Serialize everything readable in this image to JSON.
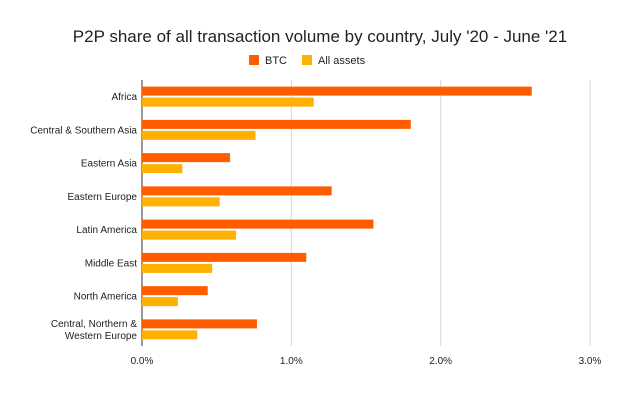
{
  "chart_data": {
    "type": "bar",
    "orientation": "horizontal",
    "title": "P2P share of all transaction volume by country, July '20 - June '21",
    "xlabel": "",
    "ylabel": "",
    "xlim": [
      0,
      0.03
    ],
    "x_ticks": [
      0,
      0.01,
      0.02,
      0.03
    ],
    "x_tick_labels": [
      "0.0%",
      "1.0%",
      "2.0%",
      "3.0%"
    ],
    "grid": true,
    "legend_position": "top",
    "categories": [
      [
        "Africa"
      ],
      [
        "Central & Southern Asia"
      ],
      [
        "Eastern Asia"
      ],
      [
        "Eastern Europe"
      ],
      [
        "Latin America"
      ],
      [
        "Middle East"
      ],
      [
        "North America"
      ],
      [
        "Central, Northern &",
        "Western Europe"
      ]
    ],
    "series": [
      {
        "name": "BTC",
        "color": "#ff5c00",
        "values": [
          0.0261,
          0.018,
          0.0059,
          0.0127,
          0.0155,
          0.011,
          0.0044,
          0.0077
        ]
      },
      {
        "name": "All assets",
        "color": "#ffb000",
        "values": [
          0.0115,
          0.0076,
          0.0027,
          0.0052,
          0.0063,
          0.0047,
          0.0024,
          0.0037
        ]
      }
    ]
  }
}
